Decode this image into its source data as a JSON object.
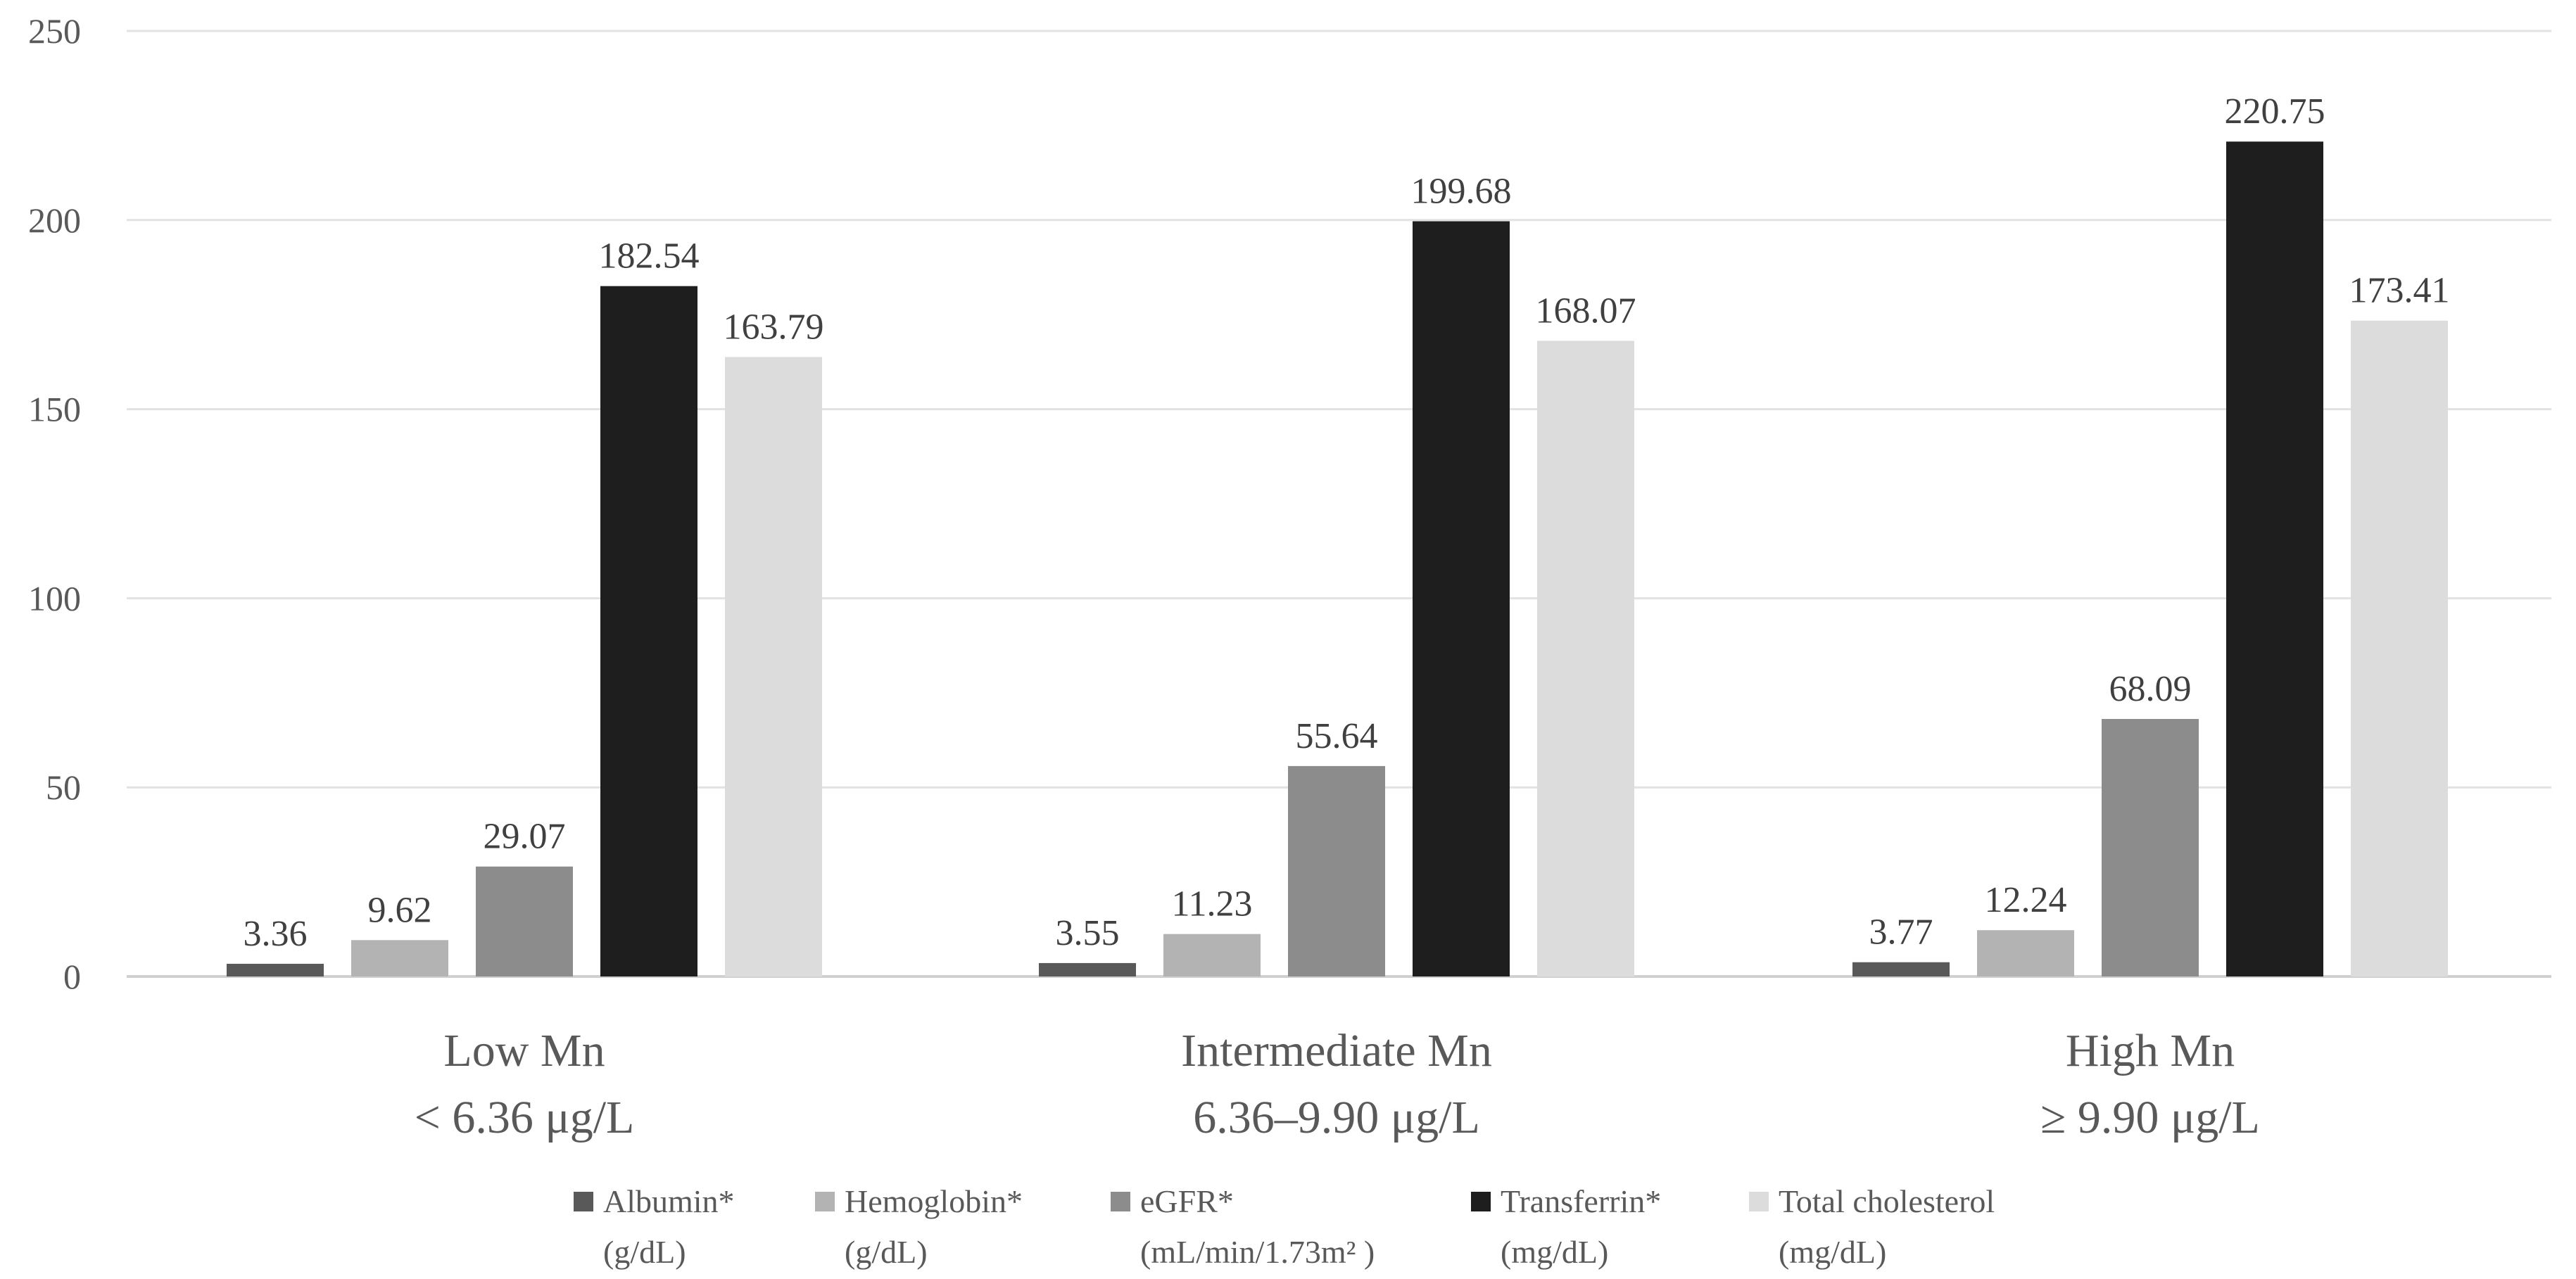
{
  "chart_data": {
    "type": "bar",
    "title": "",
    "xlabel": "",
    "ylabel": "",
    "ylim": [
      0,
      250
    ],
    "yticks": [
      0,
      50,
      100,
      150,
      200,
      250
    ],
    "grid": true,
    "legend_position": "bottom",
    "categories": [
      {
        "line1": "Low Mn",
        "line2": "< 6.36 μg/L"
      },
      {
        "line1": "Intermediate Mn",
        "line2": "6.36–9.90 μg/L"
      },
      {
        "line1": "High Mn",
        "line2": "≥ 9.90 μg/L"
      }
    ],
    "series": [
      {
        "name": "Albumin*",
        "unit": "(g/dL)",
        "color": "#595959",
        "values": [
          3.36,
          3.55,
          3.77
        ],
        "labels": [
          "3.36",
          "3.55",
          "3.77"
        ]
      },
      {
        "name": "Hemoglobin*",
        "unit": "(g/dL)",
        "color": "#B3B3B3",
        "values": [
          9.62,
          11.23,
          12.24
        ],
        "labels": [
          "9.62",
          "11.23",
          "12.24"
        ]
      },
      {
        "name": "eGFR*",
        "unit": "(mL/min/1.73m² )",
        "color": "#8C8C8C",
        "values": [
          29.07,
          55.64,
          68.09
        ],
        "labels": [
          "29.07",
          "55.64",
          "68.09"
        ]
      },
      {
        "name": "Transferrin*",
        "unit": "(mg/dL)",
        "color": "#1E1E1E",
        "values": [
          182.54,
          199.68,
          220.75
        ],
        "labels": [
          "182.54",
          "199.68",
          "220.75"
        ]
      },
      {
        "name": "Total cholesterol",
        "unit": "(mg/dL)",
        "color": "#DCDCDC",
        "values": [
          163.79,
          168.07,
          173.41
        ],
        "labels": [
          "163.79",
          "168.07",
          "173.41"
        ]
      }
    ]
  }
}
